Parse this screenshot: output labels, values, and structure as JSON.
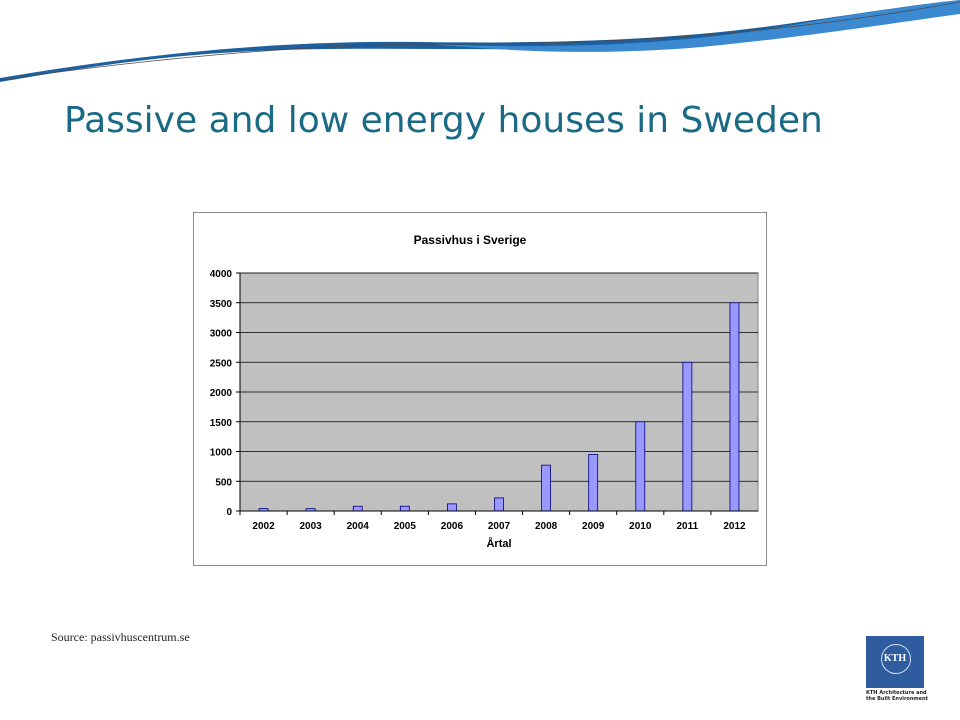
{
  "slide": {
    "title": "Passive and low energy houses in Sweden",
    "source": "Source:  passivhuscentrum.se"
  },
  "logo": {
    "text": "KTH",
    "caption": "KTH Architecture and the Built Environment"
  },
  "colors": {
    "title": "#1a6a86",
    "swoosh_dark": "#1d5f9f",
    "swoosh_light": "#3a89d1",
    "plot_bg": "#c0c0c0",
    "bar_fill": "#9999ff",
    "bar_stroke": "#000080"
  },
  "chart_data": {
    "type": "bar",
    "title": "Passivhus i Sverige",
    "xlabel": "Årtal",
    "ylabel": "",
    "categories": [
      "2002",
      "2003",
      "2004",
      "2005",
      "2006",
      "2007",
      "2008",
      "2009",
      "2010",
      "2011",
      "2012"
    ],
    "values": [
      40,
      40,
      80,
      80,
      120,
      220,
      770,
      950,
      1500,
      2500,
      3500
    ],
    "ylim": [
      0,
      4000
    ],
    "yticks": [
      0,
      500,
      1000,
      1500,
      2000,
      2500,
      3000,
      3500,
      4000
    ],
    "grid": true,
    "legend": "none"
  }
}
